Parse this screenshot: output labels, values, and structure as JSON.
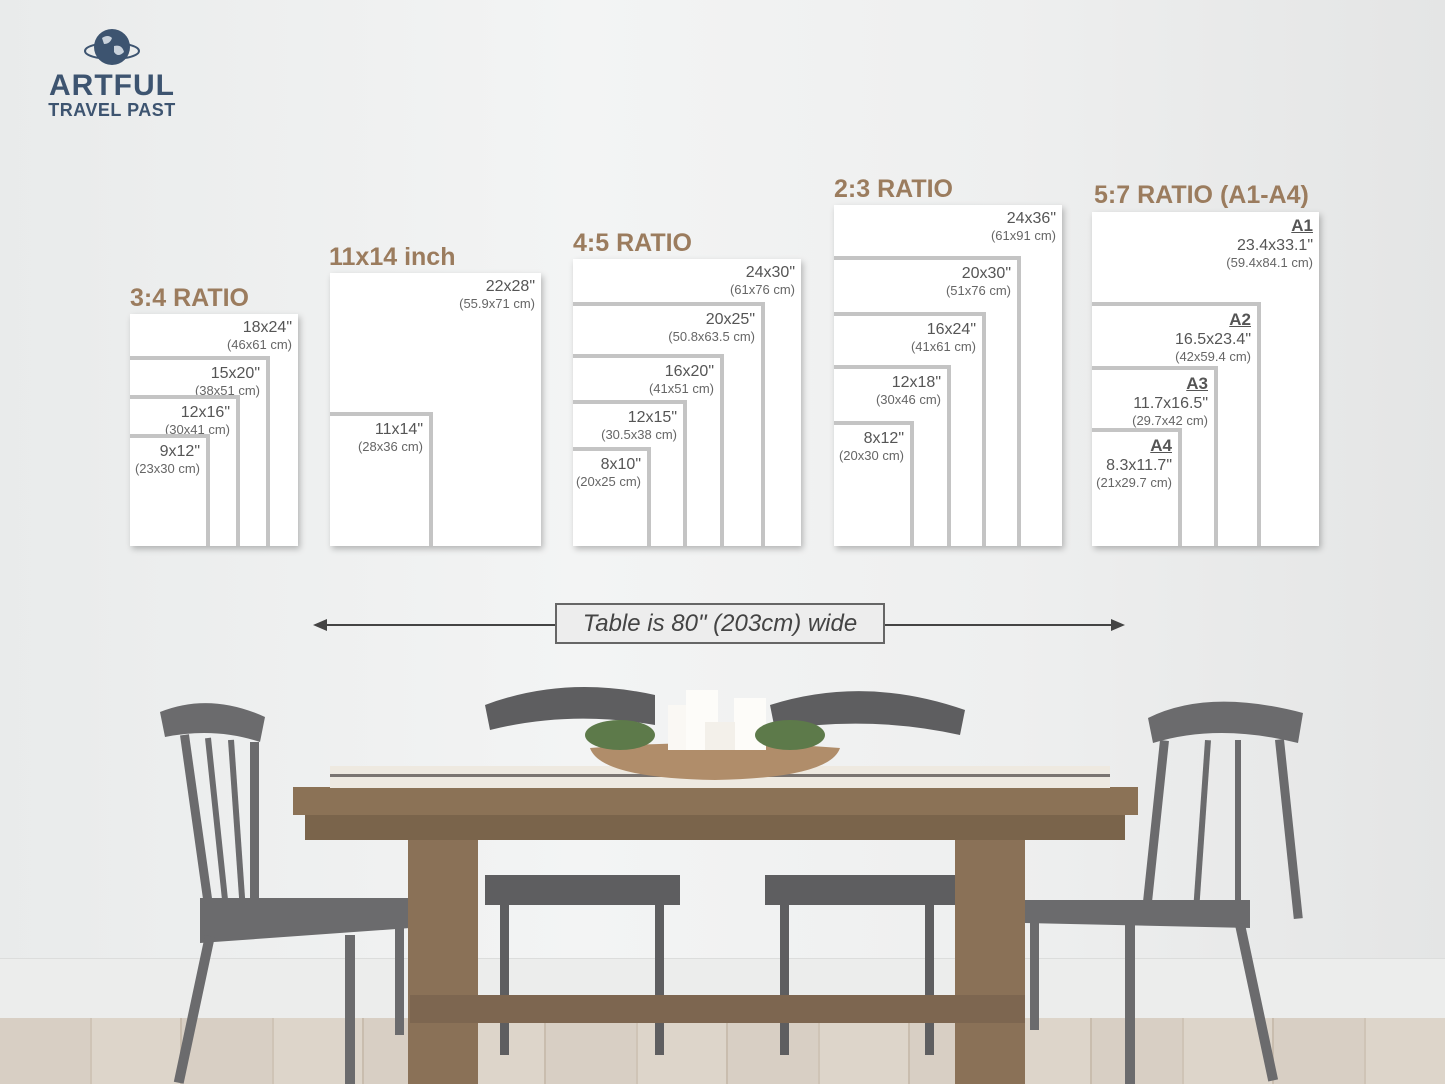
{
  "logo": {
    "line1": "ARTFUL",
    "line2": "TRAVEL PAST",
    "color": "#3d5470"
  },
  "title_color": "#9b7c5e",
  "groups": [
    {
      "title": "3:4 RATIO",
      "sizes": [
        {
          "in": "18x24\"",
          "cm": "(46x61 cm)"
        },
        {
          "in": "15x20\"",
          "cm": "(38x51 cm)"
        },
        {
          "in": "12x16\"",
          "cm": "(30x41 cm)"
        },
        {
          "in": "9x12\"",
          "cm": "(23x30 cm)"
        }
      ]
    },
    {
      "title": "11x14 inch",
      "sizes": [
        {
          "in": "22x28\"",
          "cm": "(55.9x71 cm)"
        },
        {
          "in": "11x14\"",
          "cm": "(28x36 cm)"
        }
      ]
    },
    {
      "title": "4:5 RATIO",
      "sizes": [
        {
          "in": "24x30\"",
          "cm": "(61x76 cm)"
        },
        {
          "in": "20x25\"",
          "cm": "(50.8x63.5 cm)"
        },
        {
          "in": "16x20\"",
          "cm": "(41x51 cm)"
        },
        {
          "in": "12x15\"",
          "cm": "(30.5x38 cm)"
        },
        {
          "in": "8x10\"",
          "cm": "(20x25 cm)"
        }
      ]
    },
    {
      "title": "2:3 RATIO",
      "sizes": [
        {
          "in": "24x36\"",
          "cm": "(61x91 cm)"
        },
        {
          "in": "20x30\"",
          "cm": "(51x76 cm)"
        },
        {
          "in": "16x24\"",
          "cm": "(41x61 cm)"
        },
        {
          "in": "12x18\"",
          "cm": "(30x46 cm)"
        },
        {
          "in": "8x12\"",
          "cm": "(20x30 cm)"
        }
      ]
    },
    {
      "title": "5:7 RATIO (A1-A4)",
      "sizes": [
        {
          "a": "A1",
          "in": "23.4x33.1\"",
          "cm": "(59.4x84.1 cm)"
        },
        {
          "a": "A2",
          "in": "16.5x23.4\"",
          "cm": "(42x59.4 cm)"
        },
        {
          "a": "A3",
          "in": "11.7x16.5\"",
          "cm": "(29.7x42 cm)"
        },
        {
          "a": "A4",
          "in": "8.3x11.7\"",
          "cm": "(21x29.7 cm)"
        }
      ]
    }
  ],
  "table_note": "Table is 80\" (203cm) wide"
}
